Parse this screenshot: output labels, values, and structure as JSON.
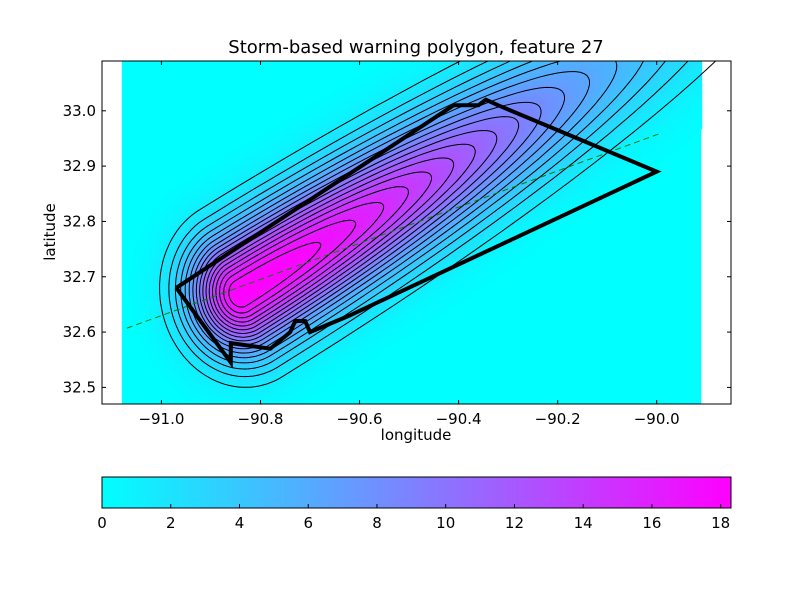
{
  "chart_data": {
    "type": "heatmap",
    "title": "Storm-based warning polygon, feature 27",
    "xlabel": "longitude",
    "ylabel": "latitude",
    "xlim": [
      -91.12,
      -89.85
    ],
    "ylim": [
      32.47,
      33.09
    ],
    "xticks": [
      -91.0,
      -90.8,
      -90.6,
      -90.4,
      -90.2,
      -90.0
    ],
    "xtick_labels": [
      "−91.0",
      "−90.8",
      "−90.6",
      "−90.4",
      "−90.2",
      "−90.0"
    ],
    "yticks": [
      32.5,
      32.6,
      32.7,
      32.8,
      32.9,
      33.0
    ],
    "ytick_labels": [
      "32.5",
      "32.6",
      "32.7",
      "32.8",
      "32.9",
      "33.0"
    ],
    "image_extent": {
      "xmin": -91.08,
      "xmax": -89.91,
      "ymin": 32.47,
      "ymax": 33.09
    },
    "background_color": "#00ffff",
    "grid": false,
    "density_field": {
      "peak": 18.3,
      "center": [
        -90.84,
        32.67
      ],
      "axis_angle_deg": 29,
      "spread_back": 0.07,
      "spread_forward": 0.55,
      "spread_cross": 0.075
    },
    "contour_levels": [
      1.3,
      2.3,
      3.3,
      4.3,
      5.3,
      6.3,
      7.3,
      8.3,
      9.3,
      10.3,
      11.3,
      12.3,
      13.3,
      14.3,
      15.3,
      16.3,
      17.3
    ],
    "warning_polygon": [
      [
        -90.97,
        32.68
      ],
      [
        -90.86,
        32.545
      ],
      [
        -90.86,
        32.58
      ],
      [
        -90.78,
        32.57
      ],
      [
        -90.74,
        32.6
      ],
      [
        -90.73,
        32.62
      ],
      [
        -90.71,
        32.62
      ],
      [
        -90.7,
        32.6
      ],
      [
        -90.62,
        32.63
      ],
      [
        -90.0,
        32.89
      ],
      [
        -90.32,
        33.01
      ],
      [
        -90.345,
        33.02
      ],
      [
        -90.36,
        33.01
      ],
      [
        -90.41,
        33.01
      ],
      [
        -90.97,
        32.68
      ]
    ],
    "track_line": {
      "points": [
        [
          -91.07,
          32.607
        ],
        [
          -89.99,
          32.96
        ]
      ],
      "color": "#008000",
      "style": "dashed"
    },
    "colorbar": {
      "min": 0,
      "max": 18.3,
      "ticks": [
        0,
        2,
        4,
        6,
        8,
        10,
        12,
        14,
        16,
        18
      ],
      "tick_labels": [
        "0",
        "2",
        "4",
        "6",
        "8",
        "10",
        "12",
        "14",
        "16",
        "18"
      ],
      "colormap": [
        "#00ffff",
        "#ff00ff"
      ]
    }
  }
}
